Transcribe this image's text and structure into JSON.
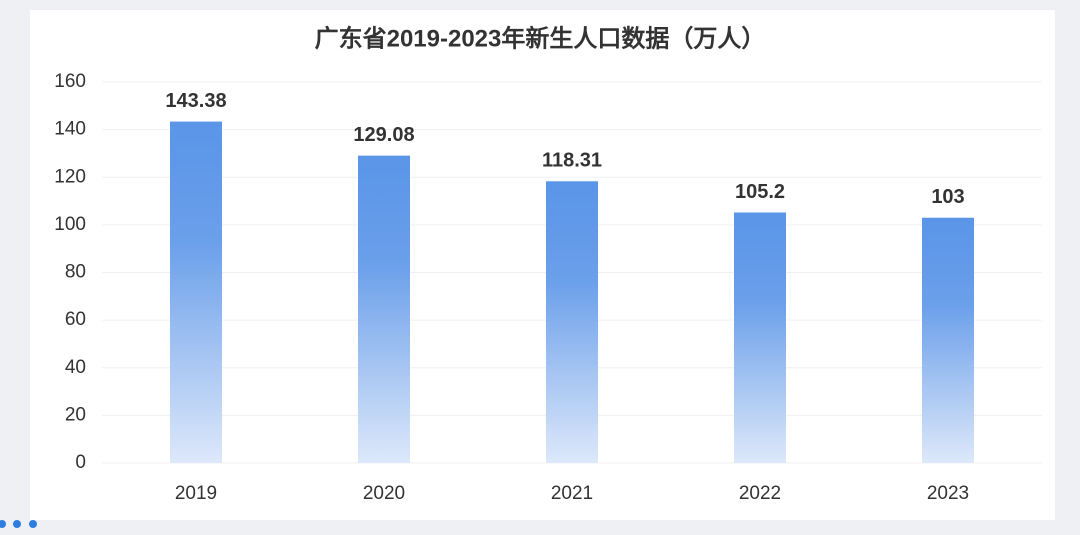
{
  "chart_data": {
    "type": "bar",
    "title": "广东省2019-2023年新生人口数据（万人）",
    "categories": [
      "2019",
      "2020",
      "2021",
      "2022",
      "2023"
    ],
    "values": [
      143.38,
      129.08,
      118.31,
      105.2,
      103
    ],
    "color": "#5a95e8",
    "ylim": [
      0,
      160
    ],
    "yticks": [
      0,
      20,
      40,
      60,
      80,
      100,
      120,
      140,
      160
    ],
    "grid": true
  }
}
